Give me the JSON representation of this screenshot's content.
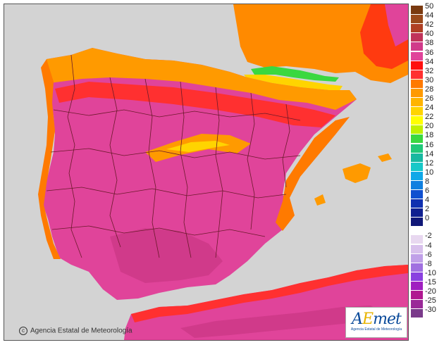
{
  "copyright": "Agencia Estatal de Meteorología",
  "logo": {
    "mark": "AEmet",
    "subtitle": "Agencia Estatal de Meteorología"
  },
  "legend": {
    "positive": [
      {
        "label": "50",
        "color": "#7a3a10"
      },
      {
        "label": "44",
        "color": "#9a4a1c"
      },
      {
        "label": "42",
        "color": "#b04024"
      },
      {
        "label": "40",
        "color": "#c0335a"
      },
      {
        "label": "38",
        "color": "#d03a8a"
      },
      {
        "label": "36",
        "color": "#e0449a"
      },
      {
        "label": "34",
        "color": "#ff1010"
      },
      {
        "label": "32",
        "color": "#ff3030"
      },
      {
        "label": "30",
        "color": "#ff7a00"
      },
      {
        "label": "28",
        "color": "#ff9a00"
      },
      {
        "label": "26",
        "color": "#ffb400"
      },
      {
        "label": "24",
        "color": "#ffd400"
      },
      {
        "label": "22",
        "color": "#ffff00"
      },
      {
        "label": "20",
        "color": "#c0f000"
      },
      {
        "label": "18",
        "color": "#3ad840"
      },
      {
        "label": "16",
        "color": "#20c878"
      },
      {
        "label": "14",
        "color": "#18b8a0"
      },
      {
        "label": "12",
        "color": "#18c8c8"
      },
      {
        "label": "10",
        "color": "#10a8e8"
      },
      {
        "label": "8",
        "color": "#1080e0"
      },
      {
        "label": "6",
        "color": "#1050d0"
      },
      {
        "label": "4",
        "color": "#1030b0"
      },
      {
        "label": "2",
        "color": "#102090"
      },
      {
        "label": "0",
        "color": "#101878"
      }
    ],
    "negative": [
      {
        "label": "-2",
        "color": "#e8d8f0"
      },
      {
        "label": "-4",
        "color": "#d8c0ec"
      },
      {
        "label": "-6",
        "color": "#c0a0e8"
      },
      {
        "label": "-8",
        "color": "#a070e0"
      },
      {
        "label": "-10",
        "color": "#8a40e0"
      },
      {
        "label": "-15",
        "color": "#a020c0"
      },
      {
        "label": "-20",
        "color": "#b01890"
      },
      {
        "label": "-25",
        "color": "#9a2a98"
      },
      {
        "label": "-30",
        "color": "#7a3a8a"
      }
    ]
  }
}
